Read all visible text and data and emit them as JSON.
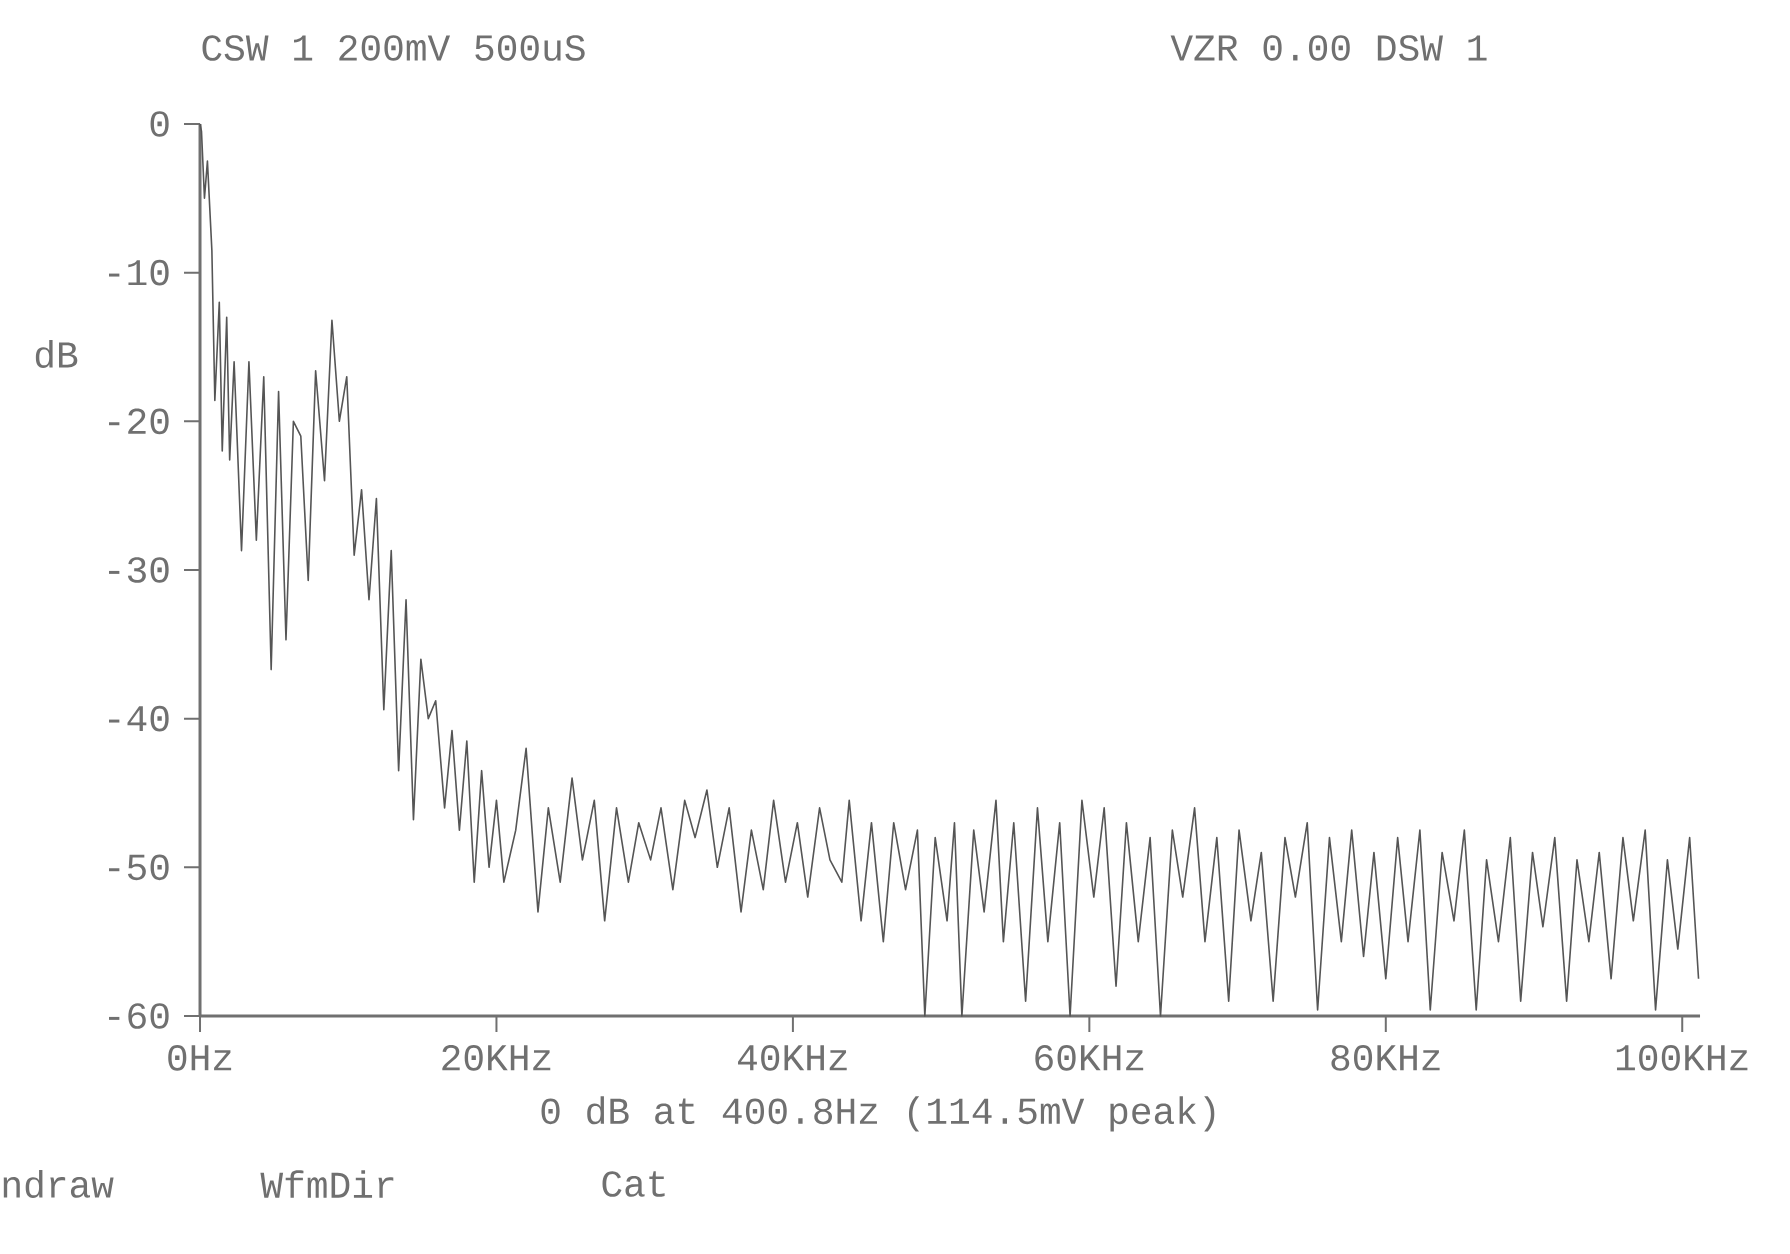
{
  "chart_data": {
    "type": "line",
    "title": "CSW 1  200mV 500uS",
    "subtitle": "VZR 0.00   DSW 1",
    "ylabel": "dB",
    "xlabel": "0 dB at 400.8Hz (114.5mV peak)",
    "annotations": [
      "ndraw",
      "WfmDir",
      "Cat"
    ],
    "xlim": [
      0,
      101.2
    ],
    "ylim": [
      -60,
      0
    ],
    "xticks": [
      {
        "value": 0,
        "label": "0Hz"
      },
      {
        "value": 20,
        "label": "20KHz"
      },
      {
        "value": 40,
        "label": "40KHz"
      },
      {
        "value": 60,
        "label": "60KHz"
      },
      {
        "value": 80,
        "label": "80KHz"
      },
      {
        "value": 100,
        "label": "100KHz"
      }
    ],
    "yticks": [
      0,
      -10,
      -20,
      -30,
      -40,
      -50,
      -60
    ],
    "series": [
      {
        "color": "#555555",
        "x": [
          0,
          0.1,
          0.3,
          0.5,
          0.8,
          1.0,
          1.3,
          1.5,
          1.8,
          2.0,
          2.3,
          2.8,
          3.3,
          3.8,
          4.3,
          4.8,
          5.3,
          5.8,
          6.3,
          6.8,
          7.3,
          7.8,
          8.4,
          8.9,
          9.4,
          9.9,
          10.4,
          10.9,
          11.4,
          11.9,
          12.4,
          12.9,
          13.4,
          13.9,
          14.4,
          14.9,
          15.4,
          15.9,
          16.5,
          17.0,
          17.5,
          18.0,
          18.5,
          19.0,
          19.5,
          20.0,
          20.5,
          21.3,
          22.0,
          22.8,
          23.5,
          24.3,
          25.1,
          25.8,
          26.6,
          27.3,
          28.1,
          28.9,
          29.6,
          30.4,
          31.1,
          31.9,
          32.7,
          33.4,
          34.2,
          34.9,
          35.7,
          36.5,
          37.2,
          38.0,
          38.7,
          39.5,
          40.3,
          41.0,
          41.8,
          42.5,
          43.3,
          43.8,
          44.6,
          45.3,
          46.1,
          46.8,
          47.6,
          48.4,
          48.9,
          49.6,
          50.4,
          50.9,
          51.4,
          52.2,
          52.9,
          53.7,
          54.2,
          54.9,
          55.7,
          56.5,
          57.2,
          58.0,
          58.7,
          59.5,
          60.3,
          61.0,
          61.8,
          62.5,
          63.3,
          64.1,
          64.8,
          65.6,
          66.3,
          67.1,
          67.8,
          68.6,
          69.4,
          70.1,
          70.9,
          71.6,
          72.4,
          73.2,
          73.9,
          74.7,
          75.4,
          76.2,
          77.0,
          77.7,
          78.5,
          79.2,
          80.0,
          80.8,
          81.5,
          82.3,
          83.0,
          83.8,
          84.6,
          85.3,
          86.1,
          86.8,
          87.6,
          88.4,
          89.1,
          89.9,
          90.6,
          91.4,
          92.2,
          92.9,
          93.7,
          94.4,
          95.2,
          96.0,
          96.7,
          97.5,
          98.2,
          99.0,
          99.7,
          100.5,
          101.1
        ],
        "values": [
          0,
          -0.5,
          -5,
          -2.5,
          -8.5,
          -18.6,
          -12,
          -22,
          -13,
          -22.6,
          -16,
          -28.7,
          -16,
          -28,
          -17,
          -36.7,
          -18,
          -34.7,
          -20,
          -21,
          -30.7,
          -16.6,
          -24,
          -13.2,
          -20,
          -17,
          -29,
          -24.6,
          -32,
          -25.2,
          -39.4,
          -28.7,
          -43.5,
          -32,
          -46.8,
          -36,
          -40,
          -38.8,
          -46,
          -40.8,
          -47.5,
          -41.5,
          -51,
          -43.5,
          -50,
          -45.5,
          -51,
          -47.5,
          -42,
          -53,
          -46,
          -51,
          -44,
          -49.5,
          -45.5,
          -53.6,
          -46,
          -51,
          -47,
          -49.5,
          -46,
          -51.5,
          -45.5,
          -48,
          -44.8,
          -50,
          -46,
          -53,
          -47.5,
          -51.5,
          -45.5,
          -51,
          -47,
          -52,
          -46,
          -49.5,
          -51,
          -45.5,
          -53.6,
          -47,
          -55,
          -47,
          -51.5,
          -47.5,
          -60,
          -48,
          -53.6,
          -47,
          -60,
          -47.5,
          -53,
          -45.5,
          -55,
          -47,
          -59,
          -46,
          -55,
          -47,
          -60,
          -45.5,
          -52,
          -46,
          -58,
          -47,
          -55,
          -48,
          -60,
          -47.5,
          -52,
          -46,
          -55,
          -48,
          -59,
          -47.5,
          -53.6,
          -49,
          -59,
          -48,
          -52,
          -47,
          -59.6,
          -48,
          -55,
          -47.5,
          -56,
          -49,
          -57.5,
          -48,
          -55,
          -47.5,
          -59.6,
          -49,
          -53.6,
          -47.5,
          -59.6,
          -49.5,
          -55,
          -48,
          -59,
          -49,
          -54,
          -48,
          -59,
          -49.5,
          -55,
          -49,
          -57.5,
          -48,
          -53.6,
          -47.5,
          -59.6,
          -49.5,
          -55.5,
          -48,
          -57.5
        ]
      }
    ]
  }
}
